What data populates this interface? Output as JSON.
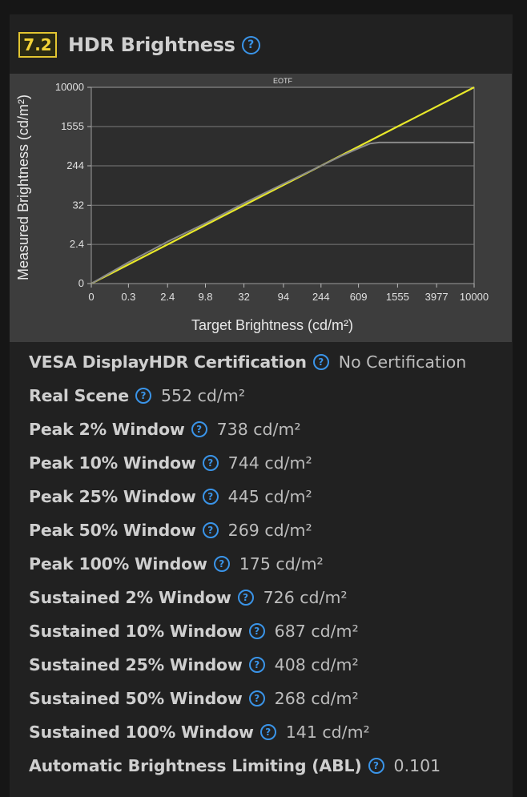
{
  "section": {
    "score": "7.2",
    "title": "HDR Brightness",
    "help_icon": "question-circle-icon"
  },
  "colors": {
    "background": "#161616",
    "card": "#212121",
    "score_accent": "#e2c531",
    "help_blue": "#3a94e8",
    "target_line": "#e8e82a",
    "measured_line": "#8a8a8a"
  },
  "chart_data": {
    "type": "line",
    "title": "EOTF",
    "xlabel": "Target Brightness (cd/m²)",
    "ylabel": "Measured Brightness (cd/m²)",
    "x_ticks": [
      "0",
      "0.3",
      "2.4",
      "9.8",
      "32",
      "94",
      "244",
      "609",
      "1555",
      "3977",
      "10000"
    ],
    "y_ticks": [
      "0",
      "2.4",
      "32",
      "244",
      "1555",
      "10000"
    ],
    "scale": "PQ (perceptual quantizer)",
    "xlim": [
      0,
      10000
    ],
    "ylim": [
      0,
      10000
    ],
    "grid": true,
    "series": [
      {
        "kind": "target",
        "color": "#e8e82a",
        "x": [
          0,
          10000
        ],
        "y": [
          0,
          10000
        ]
      },
      {
        "kind": "measured",
        "color": "#8a8a8a",
        "x": [
          0,
          0.3,
          2.4,
          9.8,
          32,
          94,
          244,
          400,
          609,
          800,
          1000,
          1555,
          3977,
          10000
        ],
        "y": [
          0,
          0.4,
          3.0,
          11,
          36,
          100,
          244,
          390,
          560,
          700,
          738,
          738,
          738,
          735
        ]
      }
    ]
  },
  "stats": [
    {
      "label": "VESA DisplayHDR Certification",
      "value": "No Certification"
    },
    {
      "label": "Real Scene",
      "value": "552 cd/m²"
    },
    {
      "label": "Peak 2% Window",
      "value": "738 cd/m²"
    },
    {
      "label": "Peak 10% Window",
      "value": "744 cd/m²"
    },
    {
      "label": "Peak 25% Window",
      "value": "445 cd/m²"
    },
    {
      "label": "Peak 50% Window",
      "value": "269 cd/m²"
    },
    {
      "label": "Peak 100% Window",
      "value": "175 cd/m²"
    },
    {
      "label": "Sustained 2% Window",
      "value": "726 cd/m²"
    },
    {
      "label": "Sustained 10% Window",
      "value": "687 cd/m²"
    },
    {
      "label": "Sustained 25% Window",
      "value": "408 cd/m²"
    },
    {
      "label": "Sustained 50% Window",
      "value": "268 cd/m²"
    },
    {
      "label": "Sustained 100% Window",
      "value": "141 cd/m²"
    },
    {
      "label": "Automatic Brightness Limiting (ABL)",
      "value": "0.101"
    }
  ]
}
